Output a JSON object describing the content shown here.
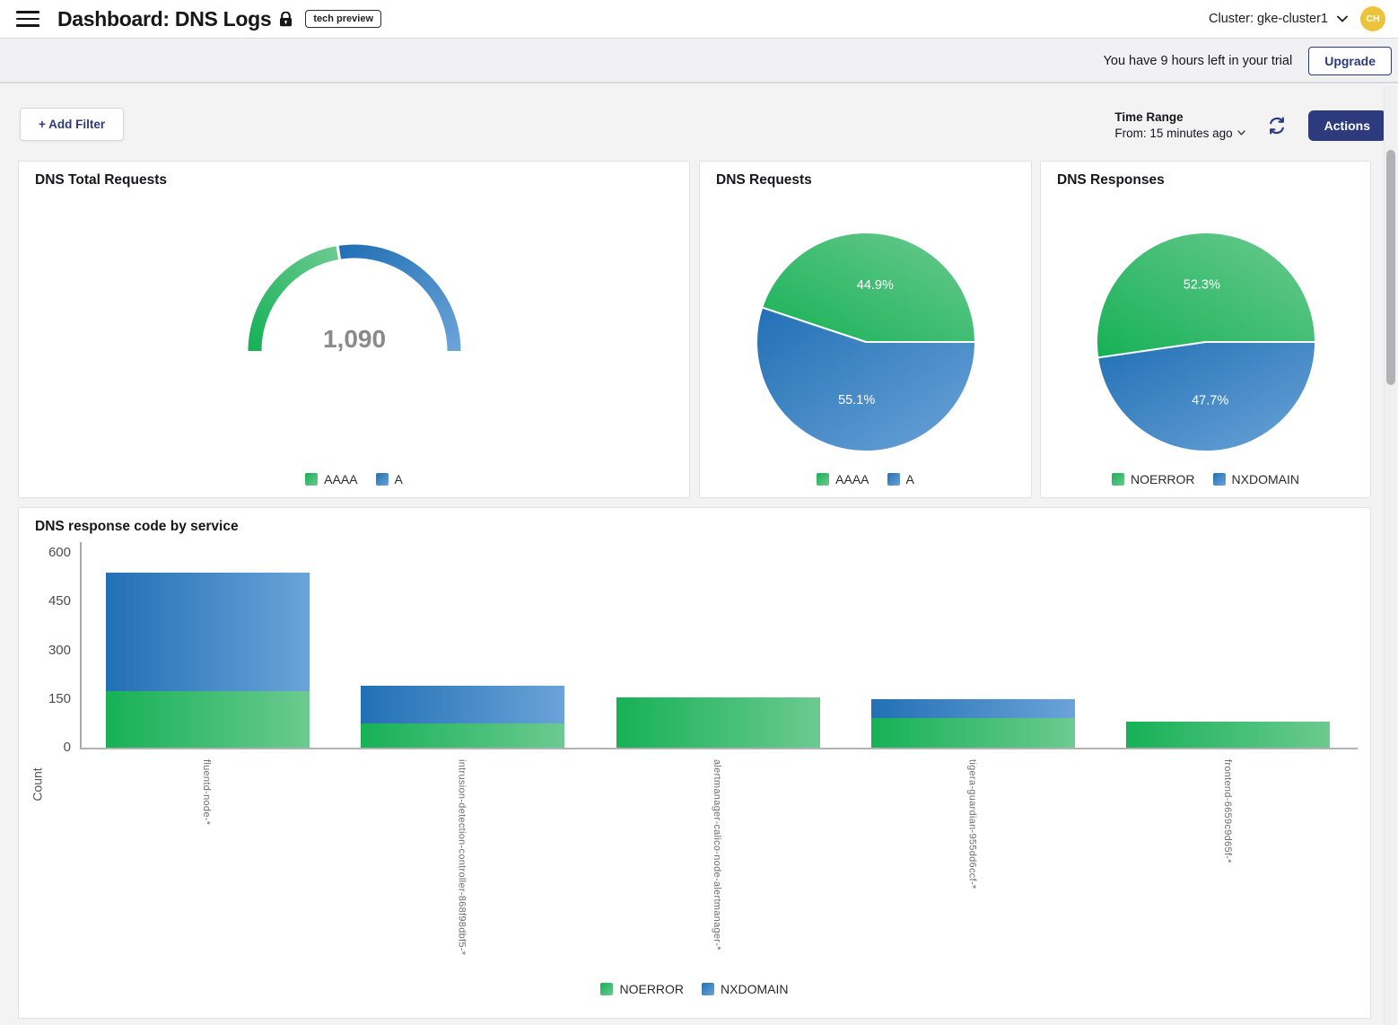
{
  "header": {
    "title": "Dashboard: DNS Logs",
    "badge": "tech preview",
    "cluster_selector": "Cluster: gke-cluster1",
    "avatar_initials": "CH"
  },
  "trial_bar": {
    "message": "You have 9 hours left in your trial",
    "upgrade_label": "Upgrade"
  },
  "toolbar": {
    "add_filter_label": "+ Add Filter",
    "time_range_label": "Time Range",
    "time_range_value": "From: 15 minutes ago",
    "actions_label": "Actions"
  },
  "colors": {
    "navy": "#2d3a7e",
    "green_dark": "#16b156",
    "green_light": "#6cca90",
    "blue_dark": "#2270b5",
    "blue_light": "#6aa3d8",
    "gauge_value_color": "#8a8a8a",
    "pie_label_color": "#ffffff",
    "avatar_bg": "#eec33c"
  },
  "chart_data": [
    {
      "type": "gauge",
      "title": "DNS Total Requests",
      "total_label": "1,090",
      "total": 1090,
      "legend_position": "bottom",
      "series": [
        {
          "name": "AAAA",
          "percent": 44.9,
          "color": "green"
        },
        {
          "name": "A",
          "percent": 55.1,
          "color": "blue"
        }
      ]
    },
    {
      "type": "pie",
      "title": "DNS Requests",
      "legend_position": "bottom",
      "series": [
        {
          "name": "AAAA",
          "percent": 44.9,
          "label": "44.9%",
          "color": "green"
        },
        {
          "name": "A",
          "percent": 55.1,
          "label": "55.1%",
          "color": "blue"
        }
      ]
    },
    {
      "type": "pie",
      "title": "DNS Responses",
      "legend_position": "bottom",
      "series": [
        {
          "name": "NOERROR",
          "percent": 52.3,
          "label": "52.3%",
          "color": "green"
        },
        {
          "name": "NXDOMAIN",
          "percent": 47.7,
          "label": "47.7%",
          "color": "blue"
        }
      ]
    },
    {
      "type": "bar",
      "title": "DNS response code by service",
      "stacked": true,
      "xlabel": "",
      "ylabel": "Count",
      "ylim": [
        0,
        600
      ],
      "yticks": [
        0,
        150,
        300,
        450,
        600
      ],
      "grid": false,
      "legend_position": "bottom",
      "categories": [
        "fluentd-node-*",
        "intrusion-detection-controller-868f98dbf5-*",
        "alertmanager-calico-node-alertmanager-*",
        "tigera-guardian-955dd6ccf-*",
        "frontend-6659c9d65f-*"
      ],
      "series": [
        {
          "name": "NOERROR",
          "color": "green",
          "values": [
            175,
            75,
            155,
            90,
            80
          ]
        },
        {
          "name": "NXDOMAIN",
          "color": "blue",
          "values": [
            365,
            115,
            0,
            60,
            0
          ]
        }
      ]
    }
  ]
}
